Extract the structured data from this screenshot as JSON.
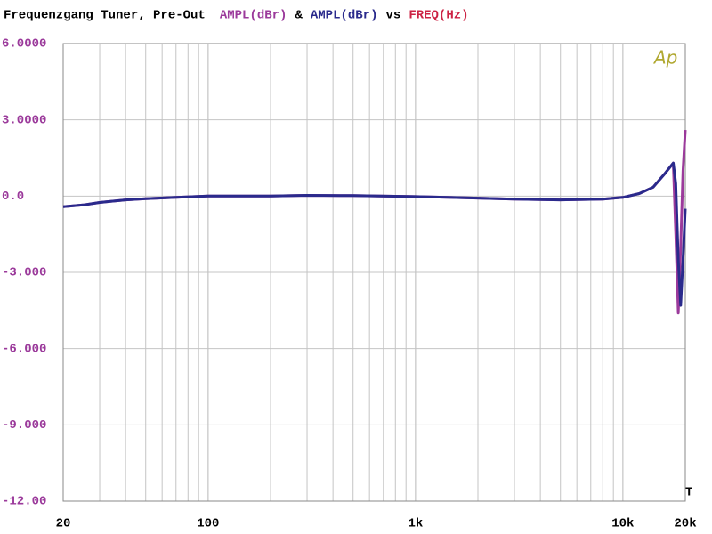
{
  "chart_data": {
    "type": "line",
    "title": "Frequenzgang Tuner, Pre-Out",
    "title_joiner": "&",
    "title_vs": "vs",
    "x_label": "FREQ(Hz)",
    "x_label_color": "#cc2244",
    "logo": "Ap",
    "marker_label": "T",
    "x": [
      20,
      25,
      30,
      40,
      50,
      70,
      100,
      200,
      300,
      500,
      1000,
      2000,
      3000,
      5000,
      8000,
      10000,
      12000,
      14000,
      16000,
      17500,
      18000,
      18500,
      19000,
      19500,
      20000
    ],
    "series": [
      {
        "name": "AMPL(dBr)",
        "color": "#9b3a9b",
        "values": [
          -0.42,
          -0.35,
          -0.25,
          -0.15,
          -0.1,
          -0.05,
          0,
          0,
          0.03,
          0.02,
          -0.02,
          -0.08,
          -0.12,
          -0.15,
          -0.12,
          -0.05,
          0.1,
          0.35,
          0.9,
          1.3,
          -1.5,
          -4.6,
          -2,
          1,
          2.6
        ]
      },
      {
        "name": "AMPL(dBr)",
        "color": "#2a2a8c",
        "values": [
          -0.42,
          -0.35,
          -0.25,
          -0.15,
          -0.1,
          -0.05,
          0,
          0,
          0.03,
          0.02,
          -0.02,
          -0.08,
          -0.12,
          -0.15,
          -0.12,
          -0.05,
          0.1,
          0.35,
          0.9,
          1.3,
          0.5,
          -2.5,
          -4.3,
          -2.5,
          -0.5
        ]
      }
    ],
    "xlim": [
      20,
      20000
    ],
    "xscale": "log",
    "xticks": [
      20,
      100,
      {
        "value": 1000,
        "label": "1k"
      },
      {
        "value": 10000,
        "label": "10k"
      },
      {
        "value": 20000,
        "label": "20k"
      }
    ],
    "ylim": [
      -12,
      6
    ],
    "yticks": [
      {
        "value": 6,
        "label": "6.0000"
      },
      {
        "value": 3,
        "label": "3.0000"
      },
      {
        "value": 0,
        "label": "0.0"
      },
      {
        "value": -3,
        "label": "-3.000"
      },
      {
        "value": -6,
        "label": "-6.000"
      },
      {
        "value": -9,
        "label": "-9.000"
      },
      {
        "value": -12,
        "label": "-12.00"
      }
    ],
    "ytick_color": "#9b3a9b",
    "grid": true
  }
}
